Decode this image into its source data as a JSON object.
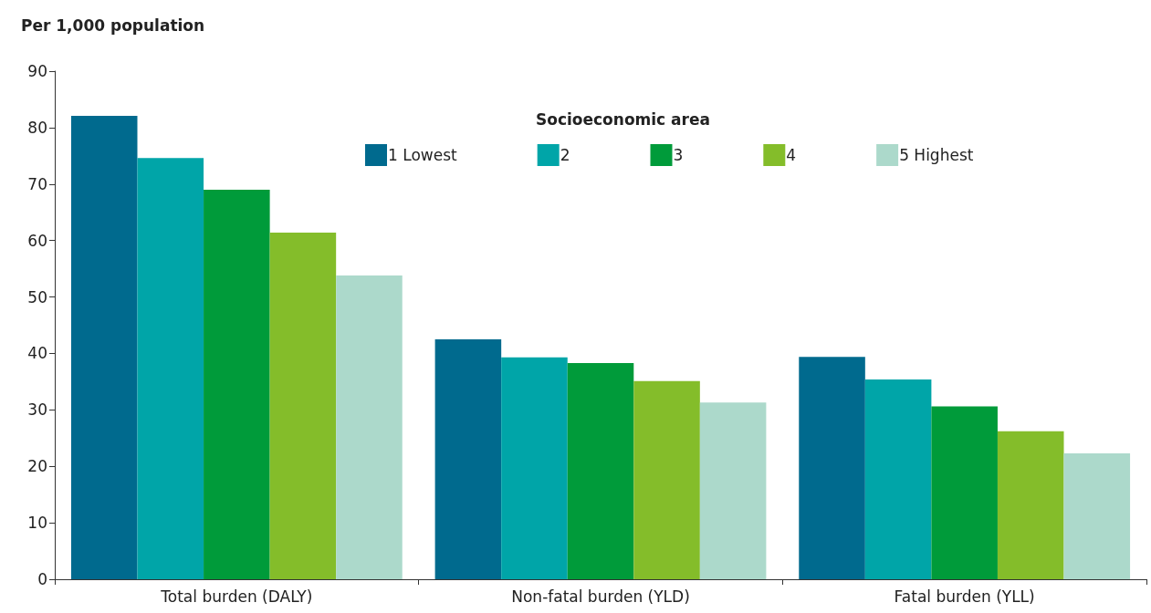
{
  "chart_data": {
    "type": "bar",
    "ylabel": "Per 1,000 population",
    "legend_title": "Socioeconomic area",
    "categories": [
      "Total burden (DALY)",
      "Non-fatal burden (YLD)",
      "Fatal burden (YLL)"
    ],
    "series": [
      {
        "name": "1 Lowest",
        "color": "#006a8e",
        "values": [
          82.1,
          42.5,
          39.4
        ]
      },
      {
        "name": "2",
        "color": "#00a5a8",
        "values": [
          74.6,
          39.3,
          35.4
        ]
      },
      {
        "name": "3",
        "color": "#009b3a",
        "values": [
          69.0,
          38.3,
          30.6
        ]
      },
      {
        "name": "4",
        "color": "#84bd2a",
        "values": [
          61.4,
          35.1,
          26.2
        ]
      },
      {
        "name": "5 Highest",
        "color": "#acd9cb",
        "values": [
          53.8,
          31.3,
          22.3
        ]
      }
    ],
    "ylim": [
      0,
      90
    ],
    "yticks": [
      0,
      10,
      20,
      30,
      40,
      50,
      60,
      70,
      80,
      90
    ],
    "grid": false,
    "legend": "top"
  }
}
